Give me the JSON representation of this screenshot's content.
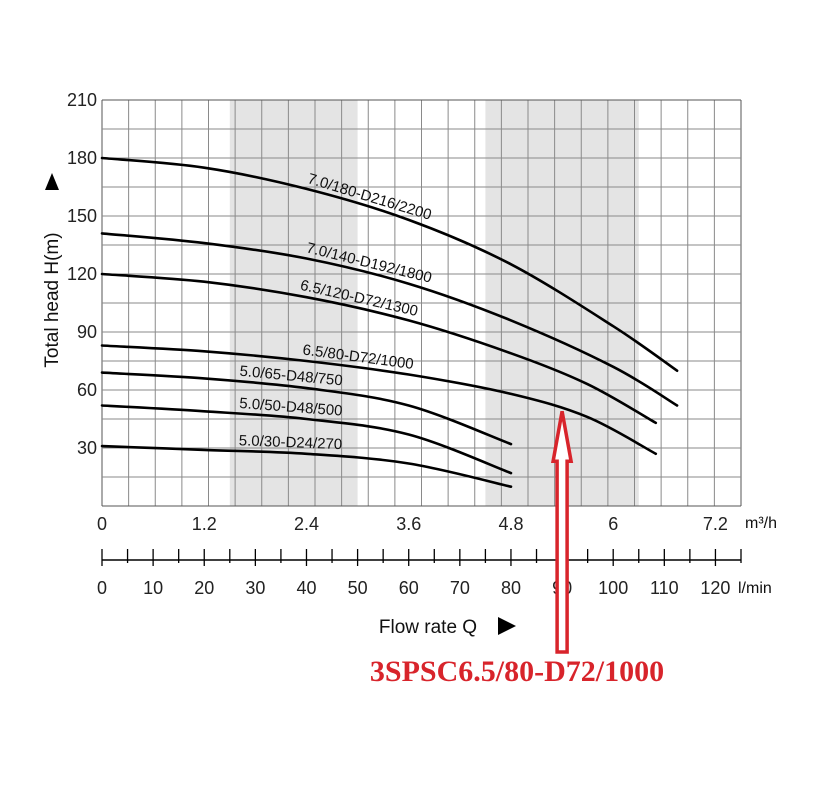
{
  "chart_data": {
    "type": "line",
    "title": "",
    "ylabel": "Total head H(m)",
    "xlabel": "Flow rate Q",
    "x_unit": "m³/h",
    "x2_unit": "l/min",
    "xlim": [
      0,
      7.5
    ],
    "ylim": [
      0,
      210
    ],
    "grid": true,
    "x_ticks": [
      "0",
      "1.2",
      "2.4",
      "3.6",
      "4.8",
      "6",
      "7.2"
    ],
    "y_ticks": [
      "30",
      "60",
      "90",
      "120",
      "150",
      "180",
      "210"
    ],
    "x2_ticks": [
      "0",
      "10",
      "20",
      "30",
      "40",
      "50",
      "60",
      "70",
      "80",
      "90",
      "100",
      "110",
      "120"
    ],
    "shaded_bands": [
      [
        1.5,
        3.0
      ],
      [
        4.5,
        6.3
      ]
    ],
    "series": [
      {
        "name": "7.0/180-D216/2200",
        "x": [
          0,
          1.2,
          2.4,
          3.6,
          4.8,
          6.0,
          6.75
        ],
        "y": [
          180,
          175,
          164,
          148,
          125,
          93,
          70
        ]
      },
      {
        "name": "7.0/140-D192/1800",
        "x": [
          0,
          1.2,
          2.4,
          3.6,
          4.8,
          6.0,
          6.75
        ],
        "y": [
          141,
          136,
          128,
          115,
          96,
          72,
          52
        ]
      },
      {
        "name": "6.5/120-D72/1300",
        "x": [
          0,
          1.2,
          2.4,
          3.6,
          4.8,
          5.7,
          6.5
        ],
        "y": [
          120,
          116,
          108,
          96,
          79,
          63,
          43
        ]
      },
      {
        "name": "6.5/80-D72/1000",
        "x": [
          0,
          1.2,
          2.4,
          3.6,
          4.8,
          5.7,
          6.5
        ],
        "y": [
          83,
          80,
          75,
          68,
          58,
          46,
          27
        ]
      },
      {
        "name": "5.0/65-D48/750",
        "x": [
          0,
          1.2,
          2.4,
          3.6,
          4.8
        ],
        "y": [
          69,
          66,
          61,
          52,
          32
        ]
      },
      {
        "name": "5.0/50-D48/500",
        "x": [
          0,
          1.2,
          2.4,
          3.6,
          4.8
        ],
        "y": [
          52,
          49,
          45,
          37,
          17
        ]
      },
      {
        "name": "5.0/30-D24/270",
        "x": [
          0,
          1.2,
          2.4,
          3.6,
          4.8
        ],
        "y": [
          31,
          29,
          27,
          22,
          10
        ]
      }
    ],
    "highlight": {
      "label": "3SPSC6.5/80-D72/1000",
      "series": "6.5/80-D72/1000",
      "x": 5.4,
      "color": "#d8242b"
    }
  }
}
